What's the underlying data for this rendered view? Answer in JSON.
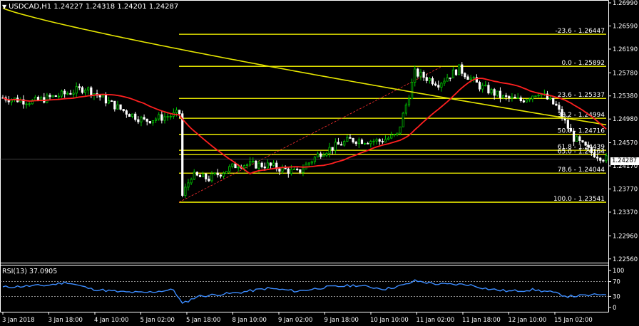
{
  "header": {
    "symbol_line": "USDCAD,H1  1.24227 1.24318 1.24201 1.24287",
    "menu_icon": "triangle-down-icon"
  },
  "rsi_header": "RSI(13) 37.0905",
  "current_price": "1.24287",
  "colors": {
    "background": "#000000",
    "bull": "#00c800",
    "bear": "#ffffff",
    "fib": "#ffff00",
    "ma_fast": "#ff2020",
    "ma_slow": "#e6e600",
    "rsi": "#3c8cff",
    "grid_axis": "#ffffff"
  },
  "chart_data": {
    "type": "candlestick",
    "symbol": "USDCAD",
    "timeframe": "H1",
    "price_axis": {
      "ticks": [
        "1.26990",
        "1.26590",
        "1.26190",
        "1.25780",
        "1.25380",
        "1.24980",
        "1.24570",
        "1.24170",
        "1.23770",
        "1.23370",
        "1.22960",
        "1.22560"
      ],
      "ylim": [
        1.2252,
        1.2699
      ]
    },
    "time_axis": {
      "ticks": [
        "3 Jan 2018",
        "3 Jan 18:00",
        "4 Jan 10:00",
        "5 Jan 02:00",
        "5 Jan 18:00",
        "8 Jan 10:00",
        "9 Jan 02:00",
        "9 Jan 18:00",
        "10 Jan 10:00",
        "11 Jan 02:00",
        "11 Jan 18:00",
        "12 Jan 10:00",
        "15 Jan 02:00"
      ]
    },
    "fib_levels": [
      {
        "label": "-23.6 - 1.26447",
        "price": 1.26447
      },
      {
        "label": "0.0 - 1.25892",
        "price": 1.25892
      },
      {
        "label": "23.6 - 1.25337",
        "price": 1.25337
      },
      {
        "label": "38.2 - 1.24994",
        "price": 1.24994
      },
      {
        "label": "50.0 - 1.24716",
        "price": 1.24716
      },
      {
        "label": "61.8 - 1.24439",
        "price": 1.24439
      },
      {
        "label": "65.0 - 1.24364",
        "price": 1.24364
      },
      {
        "label": "78.6 - 1.24044",
        "price": 1.24044
      },
      {
        "label": "100.0 - 1.23541",
        "price": 1.23541
      }
    ],
    "price_path_waypoints": [
      {
        "t": 0,
        "p": 1.2535
      },
      {
        "t": 10,
        "p": 1.2528
      },
      {
        "t": 20,
        "p": 1.254
      },
      {
        "t": 28,
        "p": 1.2552
      },
      {
        "t": 40,
        "p": 1.2515
      },
      {
        "t": 48,
        "p": 1.2495
      },
      {
        "t": 58,
        "p": 1.2505
      },
      {
        "t": 60,
        "p": 1.2508
      },
      {
        "t": 61,
        "p": 1.2365
      },
      {
        "t": 64,
        "p": 1.24
      },
      {
        "t": 70,
        "p": 1.2395
      },
      {
        "t": 80,
        "p": 1.242
      },
      {
        "t": 90,
        "p": 1.2418
      },
      {
        "t": 100,
        "p": 1.2405
      },
      {
        "t": 108,
        "p": 1.244
      },
      {
        "t": 118,
        "p": 1.2462
      },
      {
        "t": 128,
        "p": 1.246
      },
      {
        "t": 134,
        "p": 1.247
      },
      {
        "t": 138,
        "p": 1.254
      },
      {
        "t": 140,
        "p": 1.2578
      },
      {
        "t": 148,
        "p": 1.256
      },
      {
        "t": 155,
        "p": 1.2585
      },
      {
        "t": 162,
        "p": 1.2555
      },
      {
        "t": 170,
        "p": 1.2535
      },
      {
        "t": 176,
        "p": 1.253
      },
      {
        "t": 182,
        "p": 1.2545
      },
      {
        "t": 188,
        "p": 1.252
      },
      {
        "t": 194,
        "p": 1.2465
      },
      {
        "t": 200,
        "p": 1.244
      },
      {
        "t": 205,
        "p": 1.2429
      }
    ],
    "rsi": {
      "period": 13,
      "value": 37.0905,
      "ylim": [
        0,
        100
      ],
      "ticks": [
        "100",
        "70",
        "30",
        "0"
      ],
      "levels": [
        70,
        30
      ],
      "waypoints": [
        {
          "t": 0,
          "v": 55
        },
        {
          "t": 15,
          "v": 60
        },
        {
          "t": 22,
          "v": 68
        },
        {
          "t": 30,
          "v": 50
        },
        {
          "t": 40,
          "v": 42
        },
        {
          "t": 48,
          "v": 40
        },
        {
          "t": 58,
          "v": 48
        },
        {
          "t": 61,
          "v": 10
        },
        {
          "t": 66,
          "v": 30
        },
        {
          "t": 80,
          "v": 40
        },
        {
          "t": 90,
          "v": 52
        },
        {
          "t": 100,
          "v": 44
        },
        {
          "t": 110,
          "v": 55
        },
        {
          "t": 120,
          "v": 60
        },
        {
          "t": 130,
          "v": 50
        },
        {
          "t": 137,
          "v": 62
        },
        {
          "t": 140,
          "v": 72
        },
        {
          "t": 148,
          "v": 63
        },
        {
          "t": 158,
          "v": 62
        },
        {
          "t": 165,
          "v": 50
        },
        {
          "t": 172,
          "v": 44
        },
        {
          "t": 180,
          "v": 48
        },
        {
          "t": 186,
          "v": 42
        },
        {
          "t": 192,
          "v": 30
        },
        {
          "t": 200,
          "v": 33
        },
        {
          "t": 205,
          "v": 37
        }
      ]
    }
  }
}
